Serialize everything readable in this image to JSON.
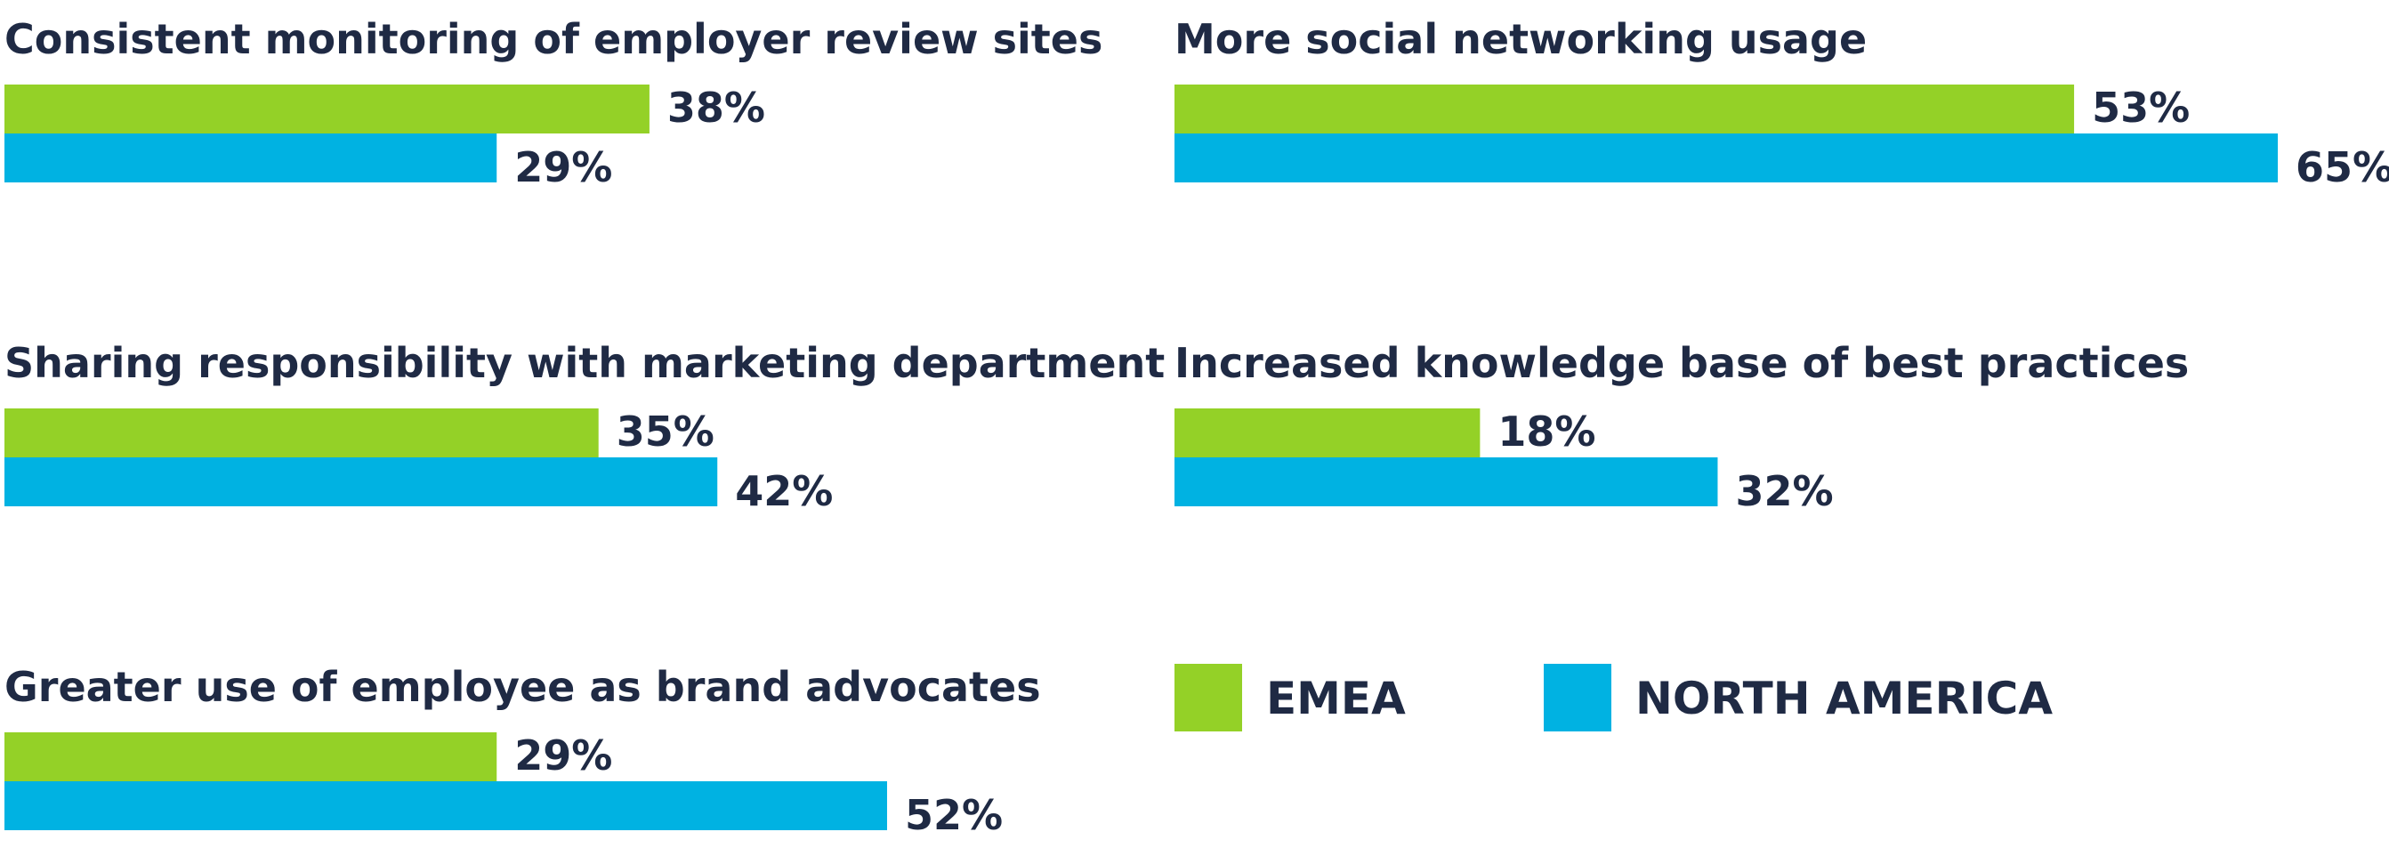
{
  "chart_data": {
    "type": "bar",
    "orientation": "horizontal",
    "value_suffix": "%",
    "xlim": [
      0,
      100
    ],
    "grid": false,
    "legend_placement": "bottom-right",
    "colors": {
      "EMEA": "#94d127",
      "NORTH AMERICA": "#00b2e2",
      "text": "#1f2a44"
    },
    "series": [
      {
        "name": "EMEA",
        "values": [
          38,
          53,
          35,
          18,
          29
        ]
      },
      {
        "name": "NORTH AMERICA",
        "values": [
          29,
          65,
          42,
          32,
          52
        ]
      }
    ],
    "categories": [
      "Consistent monitoring of employer review sites",
      "More social networking usage",
      "Sharing responsibility with marketing department",
      "Increased knowledge base of best practices",
      "Greater use of employee as brand advocates"
    ],
    "legend": [
      "EMEA",
      "NORTH AMERICA"
    ]
  }
}
